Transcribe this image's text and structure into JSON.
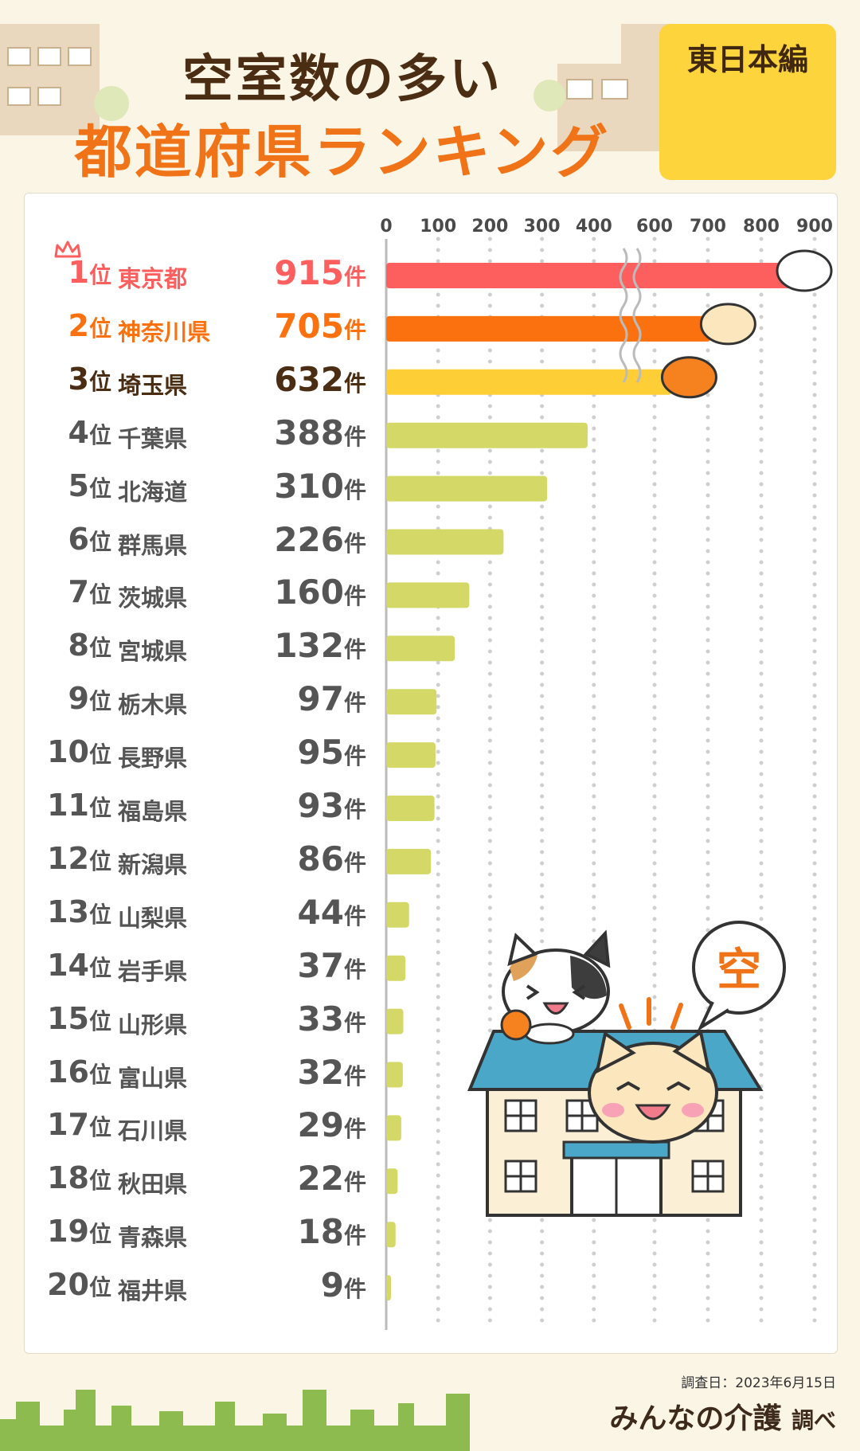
{
  "title": {
    "line1": "空室数の多い",
    "line2": "都道府県ランキング"
  },
  "badge": {
    "label": "東日本編"
  },
  "bubble_text": "空",
  "rank_suffix": "位",
  "unit": "件",
  "footer": {
    "date": "調査日：2023年6月15日",
    "brand_main": "みんなの介護",
    "brand_suffix": "調べ"
  },
  "colors": {
    "first": "#fd5f5f",
    "second": "#fb7110",
    "third": "#fece36",
    "others": "#d4d866",
    "background": "#fbf5e6"
  },
  "chart_data": {
    "type": "bar",
    "orientation": "horizontal",
    "axis_ticks": [
      0,
      100,
      200,
      300,
      400,
      600,
      700,
      800,
      900
    ],
    "axis_break": "between 400 and 600",
    "grid": true,
    "categories": [
      "東京都",
      "神奈川県",
      "埼玉県",
      "千葉県",
      "北海道",
      "群馬県",
      "茨城県",
      "宮城県",
      "栃木県",
      "長野県",
      "福島県",
      "新潟県",
      "山梨県",
      "岩手県",
      "山形県",
      "富山県",
      "石川県",
      "秋田県",
      "青森県",
      "福井県"
    ],
    "ranks": [
      "1",
      "2",
      "3",
      "4",
      "5",
      "6",
      "7",
      "8",
      "9",
      "10",
      "11",
      "12",
      "13",
      "14",
      "15",
      "16",
      "17",
      "18",
      "19",
      "20"
    ],
    "values": [
      915,
      705,
      632,
      388,
      310,
      226,
      160,
      132,
      97,
      95,
      93,
      86,
      44,
      37,
      33,
      32,
      29,
      22,
      18,
      9
    ]
  }
}
